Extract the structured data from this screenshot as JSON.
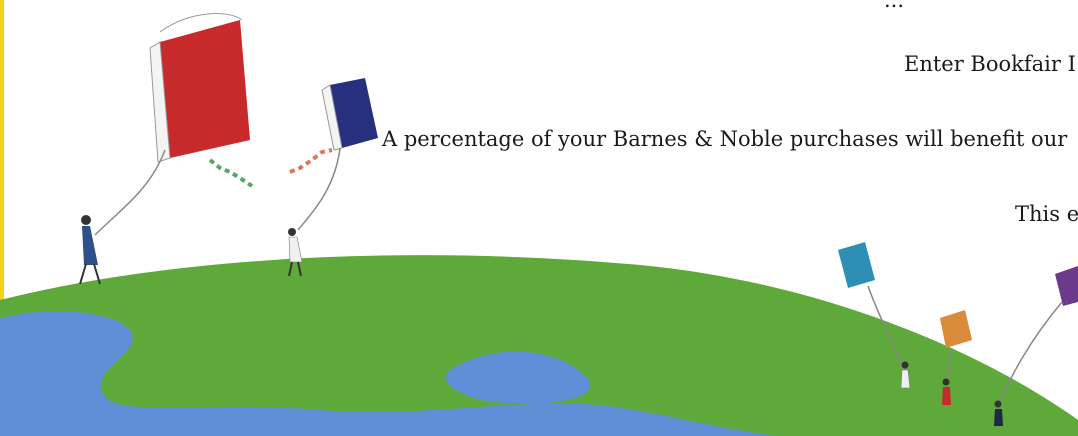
{
  "hero": {
    "line_top": "...",
    "line_bookfair": "Enter Bookfair I",
    "line_percentage": "A percentage of your Barnes & Noble purchases will benefit our",
    "line_this": "This e"
  },
  "colors": {
    "accent_bar": "#f4d21a",
    "land": "#5fa83a",
    "ocean": "#5f8fd6",
    "book_red": "#c62a2a",
    "book_navy": "#26307f",
    "book_teal": "#2e8fb5",
    "book_orange": "#d98a3b",
    "book_purple": "#6b3a8b"
  },
  "icons": [
    "globe-illustration",
    "book-kite-icon",
    "person-icon"
  ]
}
